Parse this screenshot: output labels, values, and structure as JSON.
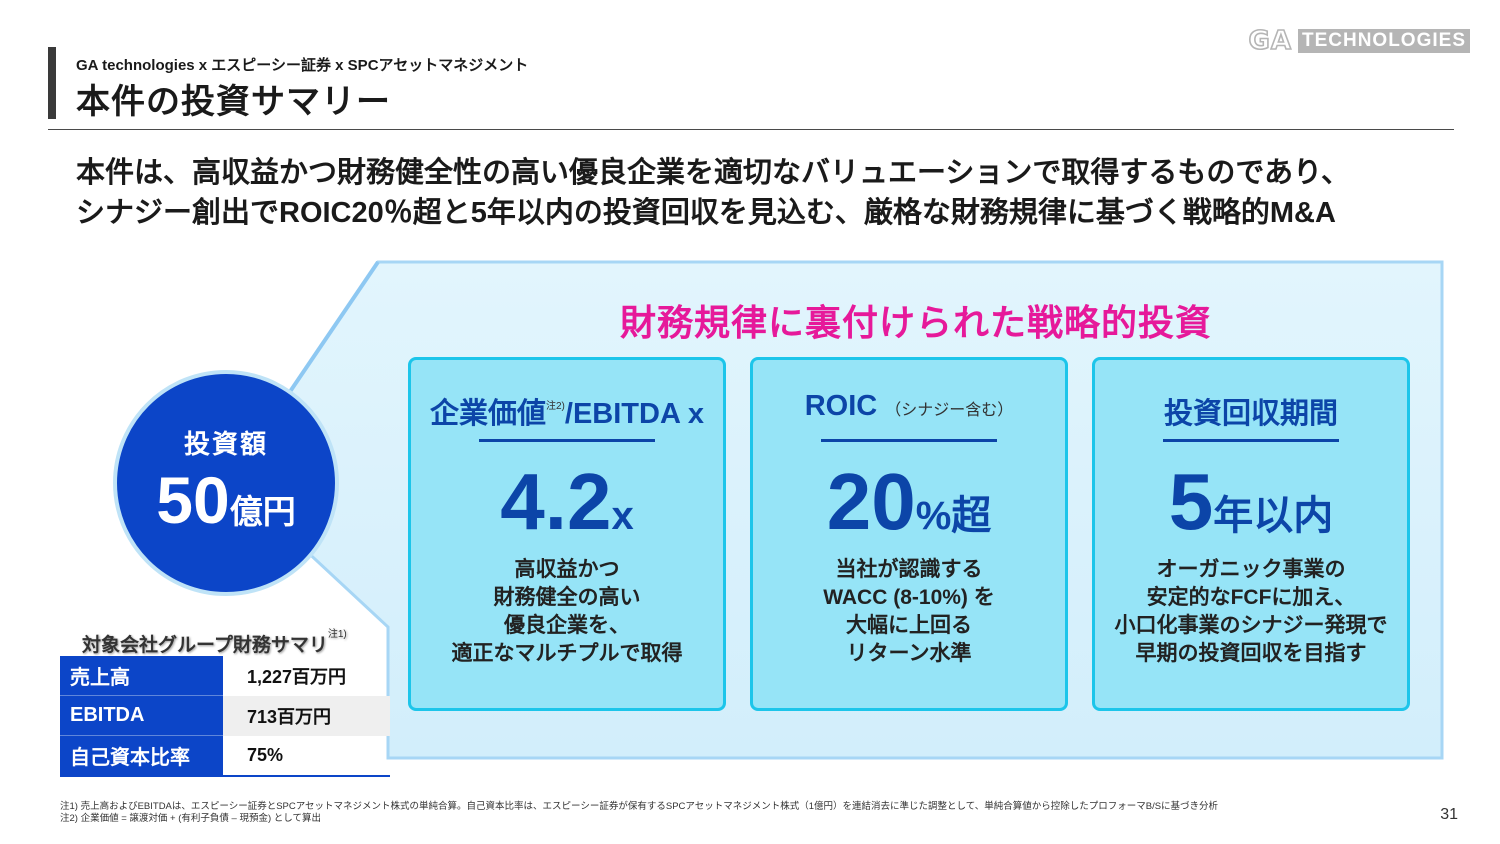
{
  "logo": {
    "ga": "GA",
    "tech": "TECHNOLOGIES"
  },
  "header": {
    "subtitle": "GA technologies x エスピーシー証券 x SPCアセットマネジメント",
    "title": "本件の投資サマリー"
  },
  "lead": {
    "line1": "本件は、高収益かつ財務健全性の高い優良企業を適切なバリュエーションで取得するものであり、",
    "line2": "シナジー創出でROIC20％超と5年以内の投資回収を見込む、厳格な財務規律に基づく戦略的M&A"
  },
  "circle": {
    "label": "投資額",
    "value": "50",
    "unit": "億円"
  },
  "panel": {
    "title": "財務規律に裏付けられた戦略的投資"
  },
  "cards": [
    {
      "head": "企業価値",
      "head_sup": "注2)",
      "head_tail": "/EBITDA x",
      "big": "4.2",
      "unit": "x",
      "desc": [
        "高収益かつ",
        "財務健全の高い",
        "優良企業を、",
        "適正なマルチプルで取得"
      ]
    },
    {
      "head": "ROIC",
      "head_note": "（シナジー含む）",
      "big": "20",
      "unit": "%超",
      "desc": [
        "当社が認識する",
        "WACC (8-10%) を",
        "大幅に上回る",
        "リターン水準"
      ]
    },
    {
      "head": "投資回収期間",
      "big": "5",
      "unit": "年以内",
      "desc": [
        "オーガニック事業の",
        "安定的なFCFに加え、",
        "小口化事業のシナジー発現で",
        "早期の投資回収を目指す"
      ]
    }
  ],
  "summary": {
    "title": "対象会社グループ財務サマリ",
    "title_sup": "注1)",
    "rows": [
      {
        "label": "売上高",
        "value": "1,227百万円"
      },
      {
        "label": "EBITDA",
        "value": "713百万円"
      },
      {
        "label": "自己資本比率",
        "value": "75%"
      }
    ]
  },
  "footnotes": {
    "n1": "注1) 売上高およびEBITDAは、エスピーシー証券とSPCアセットマネジメント株式の単純合算。自己資本比率は、エスピーシー証券が保有するSPCアセットマネジメント株式（1億円）を連結消去に準じた調整として、単純合算値から控除したプロフォーマB/Sに基づき分析",
    "n2": "注2) 企業価値 = 譲渡対価 + (有利子負債 – 現預金) として算出"
  },
  "page_number": "31",
  "colors": {
    "navy": "#0c45a8",
    "blue": "#0c45c8",
    "magenta": "#e6199a",
    "card_bg": "#96e4f7",
    "card_border": "#1cc5ea"
  }
}
